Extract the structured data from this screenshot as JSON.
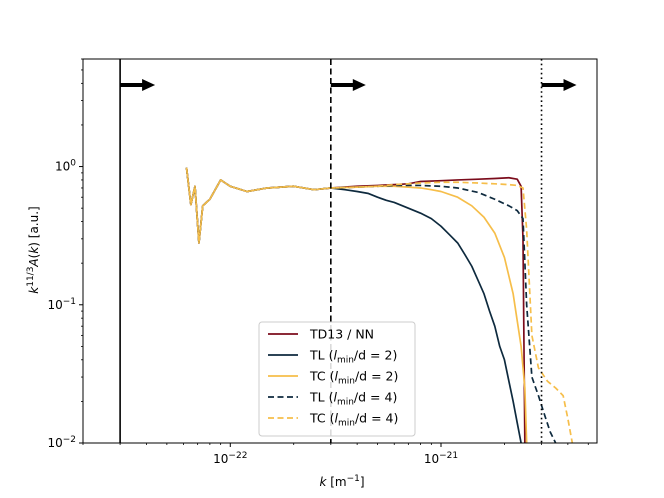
{
  "chart_data": {
    "type": "line",
    "title": "",
    "xlabel": "k [m⁻¹]",
    "ylabel": "k^{11/3} A(k) [a.u.]",
    "xscale": "log",
    "yscale": "log",
    "xlim": [
      2e-23,
      5.5e-21
    ],
    "ylim": [
      0.01,
      6.0
    ],
    "x_ticks": [
      {
        "value": 1e-22,
        "base": "10",
        "exp": "−22"
      },
      {
        "value": 1e-21,
        "base": "10",
        "exp": "−21"
      }
    ],
    "y_ticks": [
      {
        "value": 0.01,
        "base": "10",
        "exp": "−2"
      },
      {
        "value": 0.1,
        "base": "10",
        "exp": "−1"
      },
      {
        "value": 1.0,
        "base": "10",
        "exp": "0"
      }
    ],
    "vlines": [
      {
        "x": 3e-23,
        "style": "solid",
        "arrow": true
      },
      {
        "x": 3e-22,
        "style": "dashed",
        "arrow": true
      },
      {
        "x": 3e-21,
        "style": "dotted",
        "arrow": true
      }
    ],
    "legend_position": "lower-center",
    "series": [
      {
        "name": "TD13 / NN",
        "color": "#7b0c1c",
        "dash": "solid",
        "x": [
          6.2e-23,
          6.5e-23,
          6.8e-23,
          7.1e-23,
          7.4e-23,
          8e-23,
          9e-23,
          1e-22,
          1.2e-22,
          1.5e-22,
          2e-22,
          2.5e-22,
          3e-22,
          4e-22,
          5e-22,
          6e-22,
          7e-22,
          8e-22,
          1e-21,
          1.2e-21,
          1.5e-21,
          1.8e-21,
          2.1e-21,
          2.3e-21,
          2.4e-21,
          2.45e-21,
          2.5e-21
        ],
        "y": [
          0.98,
          0.53,
          0.72,
          0.28,
          0.52,
          0.58,
          0.8,
          0.72,
          0.66,
          0.7,
          0.72,
          0.68,
          0.7,
          0.72,
          0.73,
          0.74,
          0.75,
          0.78,
          0.79,
          0.8,
          0.81,
          0.82,
          0.83,
          0.81,
          0.72,
          0.3,
          0.01
        ]
      },
      {
        "name": "TL (l_min/d = 2)",
        "color": "#0e2a3e",
        "dash": "solid",
        "x": [
          6.2e-23,
          6.5e-23,
          6.8e-23,
          7.1e-23,
          7.4e-23,
          8e-23,
          9e-23,
          1e-22,
          1.2e-22,
          1.5e-22,
          2e-22,
          2.5e-22,
          3e-22,
          3.5e-22,
          4e-22,
          4.5e-22,
          5e-22,
          5.5e-22,
          6e-22,
          7e-22,
          8e-22,
          9e-22,
          1e-21,
          1.1e-21,
          1.2e-21,
          1.3e-21,
          1.4e-21,
          1.5e-21,
          1.6e-21,
          1.7e-21,
          1.8e-21,
          1.9e-21,
          2e-21,
          2.1e-21,
          2.2e-21,
          2.3e-21,
          2.4e-21
        ],
        "y": [
          0.98,
          0.53,
          0.72,
          0.28,
          0.52,
          0.58,
          0.8,
          0.72,
          0.66,
          0.7,
          0.72,
          0.68,
          0.7,
          0.68,
          0.66,
          0.64,
          0.6,
          0.57,
          0.55,
          0.5,
          0.46,
          0.42,
          0.37,
          0.32,
          0.28,
          0.23,
          0.19,
          0.15,
          0.12,
          0.09,
          0.07,
          0.05,
          0.04,
          0.028,
          0.02,
          0.014,
          0.01
        ]
      },
      {
        "name": "TC (l_min/d = 2)",
        "color": "#f6be4a",
        "dash": "solid",
        "x": [
          6.2e-23,
          6.5e-23,
          6.8e-23,
          7.1e-23,
          7.4e-23,
          8e-23,
          9e-23,
          1e-22,
          1.2e-22,
          1.5e-22,
          2e-22,
          2.5e-22,
          3e-22,
          4e-22,
          5e-22,
          6e-22,
          7e-22,
          8e-22,
          9e-22,
          1e-21,
          1.2e-21,
          1.4e-21,
          1.6e-21,
          1.8e-21,
          2e-21,
          2.2e-21,
          2.4e-21,
          2.5e-21,
          2.55e-21
        ],
        "y": [
          0.98,
          0.53,
          0.72,
          0.28,
          0.52,
          0.58,
          0.8,
          0.72,
          0.66,
          0.7,
          0.72,
          0.68,
          0.7,
          0.71,
          0.72,
          0.72,
          0.71,
          0.7,
          0.68,
          0.66,
          0.6,
          0.52,
          0.43,
          0.33,
          0.22,
          0.12,
          0.05,
          0.025,
          0.01
        ]
      },
      {
        "name": "TL (l_min/d = 4)",
        "color": "#0e2a3e",
        "dash": "dashed",
        "x": [
          6.2e-23,
          6.5e-23,
          6.8e-23,
          7.1e-23,
          7.4e-23,
          8e-23,
          9e-23,
          1e-22,
          1.2e-22,
          1.5e-22,
          2e-22,
          2.5e-22,
          3e-22,
          4e-22,
          5e-22,
          6e-22,
          7e-22,
          8e-22,
          1e-21,
          1.2e-21,
          1.5e-21,
          1.8e-21,
          2.1e-21,
          2.3e-21,
          2.45e-21,
          2.55e-21,
          2.7e-21,
          2.9e-21,
          3.1e-21,
          3.3e-21,
          3.5e-21
        ],
        "y": [
          0.98,
          0.53,
          0.72,
          0.28,
          0.52,
          0.58,
          0.8,
          0.72,
          0.66,
          0.7,
          0.72,
          0.68,
          0.7,
          0.71,
          0.72,
          0.73,
          0.73,
          0.73,
          0.72,
          0.7,
          0.65,
          0.58,
          0.52,
          0.48,
          0.42,
          0.1,
          0.03,
          0.022,
          0.016,
          0.012,
          0.01
        ]
      },
      {
        "name": "TC (l_min/d = 4)",
        "color": "#f6be4a",
        "dash": "dashed",
        "x": [
          6.2e-23,
          6.5e-23,
          6.8e-23,
          7.1e-23,
          7.4e-23,
          8e-23,
          9e-23,
          1e-22,
          1.2e-22,
          1.5e-22,
          2e-22,
          2.5e-22,
          3e-22,
          4e-22,
          5e-22,
          6e-22,
          7e-22,
          8e-22,
          1e-21,
          1.2e-21,
          1.5e-21,
          1.8e-21,
          2.1e-21,
          2.3e-21,
          2.45e-21,
          2.55e-21,
          2.7e-21,
          2.9e-21,
          3.2e-21,
          3.5e-21,
          3.8e-21,
          4e-21,
          4.2e-21
        ],
        "y": [
          0.98,
          0.53,
          0.72,
          0.28,
          0.52,
          0.58,
          0.8,
          0.72,
          0.66,
          0.7,
          0.72,
          0.68,
          0.7,
          0.71,
          0.72,
          0.74,
          0.75,
          0.76,
          0.77,
          0.77,
          0.76,
          0.75,
          0.74,
          0.73,
          0.7,
          0.35,
          0.06,
          0.035,
          0.028,
          0.025,
          0.022,
          0.015,
          0.01
        ]
      }
    ],
    "legend": [
      {
        "pre": "TD13 / NN",
        "sym": "",
        "eq": "",
        "post": ""
      },
      {
        "pre": "TL (",
        "sym": "l",
        "sub": "min",
        "eq": "/d = 2",
        "post": ")"
      },
      {
        "pre": "TC (",
        "sym": "l",
        "sub": "min",
        "eq": "/d = 2",
        "post": ")"
      },
      {
        "pre": "TL (",
        "sym": "l",
        "sub": "min",
        "eq": "/d = 4",
        "post": ")"
      },
      {
        "pre": "TC (",
        "sym": "l",
        "sub": "min",
        "eq": "/d = 4",
        "post": ")"
      }
    ]
  },
  "labels": {
    "x_axis": "k",
    "x_unit_open": " [m",
    "x_unit_exp": "−1",
    "x_unit_close": "]",
    "y_k": "k",
    "y_exp": "11/3",
    "y_A": "A",
    "y_paren": "(",
    "y_k2": "k",
    "y_close": ") [a.u.]"
  }
}
